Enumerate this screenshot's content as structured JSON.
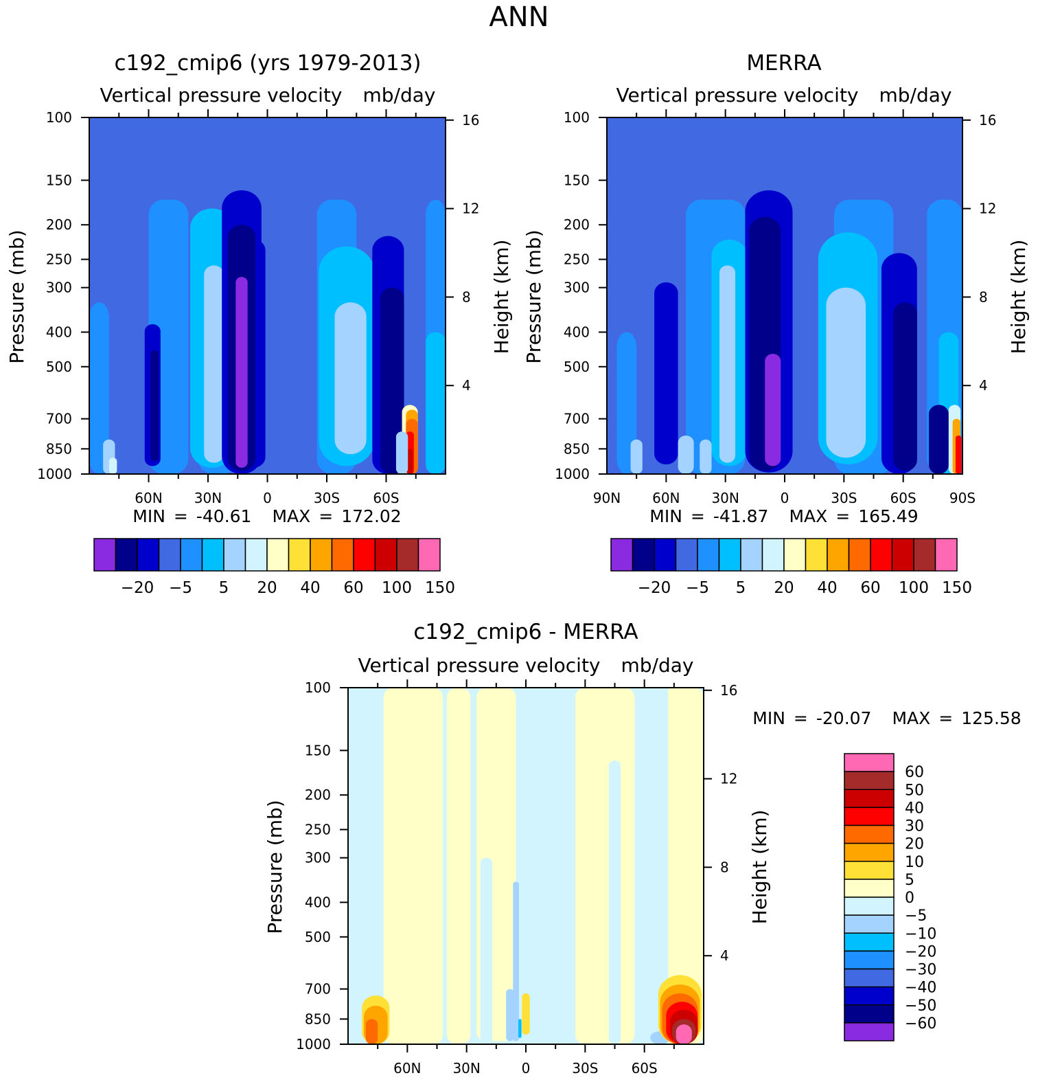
{
  "title": "ANN",
  "units_title": "Vertical pressure velocity",
  "units": "mb/day",
  "y_left_label": "Pressure (mb)",
  "y_right_label": "Height (km)",
  "min_label": "MIN",
  "max_label": "MAX",
  "equals": "=",
  "colors": {
    "abs": [
      "#8a2be2",
      "#00008b",
      "#0000cd",
      "#4169e1",
      "#1e90ff",
      "#00bfff",
      "#a4d3ff",
      "#d2f4ff",
      "#ffffc8",
      "#ffe036",
      "#ffa500",
      "#ff6a00",
      "#ff0000",
      "#cd0000",
      "#a52a2a",
      "#ff69b4"
    ],
    "diff": [
      "#8a2be2",
      "#00008b",
      "#0000cd",
      "#4169e1",
      "#1e90ff",
      "#00bfff",
      "#a4d3ff",
      "#d2f4ff",
      "#ffffc8",
      "#ffe036",
      "#ffa500",
      "#ff6a00",
      "#ff0000",
      "#cd0000",
      "#a52a2a",
      "#ff69b4"
    ]
  },
  "chart_data": [
    {
      "type": "heatmap",
      "panel": "model",
      "title": "c192_cmip6 (yrs 1979-2013)",
      "subtitle": "Vertical pressure velocity",
      "units": "mb/day",
      "x_ticks": [
        "60N",
        "30N",
        "0",
        "30S",
        "60S"
      ],
      "y_ticks": [
        100,
        150,
        200,
        250,
        300,
        400,
        500,
        700,
        850,
        1000
      ],
      "y_right_ticks": [
        16,
        12,
        8,
        4
      ],
      "xlabel": "",
      "ylabel": "Pressure (mb)",
      "y2label": "Height (km)",
      "min": "-40.61",
      "max": "172.02",
      "levels_labels": [
        "-20",
        "-5",
        "5",
        "20",
        "40",
        "60",
        "100",
        "150"
      ],
      "features": [
        {
          "lat": 15,
          "top": 280,
          "bottom": 950,
          "halfwidth": 4,
          "level": 0
        },
        {
          "lat": 10,
          "top": 200,
          "bottom": 980,
          "halfwidth": 9,
          "level": 1
        },
        {
          "lat": -62,
          "top": 300,
          "bottom": 1000,
          "halfwidth": 8,
          "level": 1
        },
        {
          "lat": 25,
          "top": 200,
          "bottom": 850,
          "halfwidth": 10,
          "level": 5
        },
        {
          "lat": -45,
          "top": 250,
          "bottom": 850,
          "halfwidth": 12,
          "level": 5
        },
        {
          "lat": 57,
          "top": 400,
          "bottom": 900,
          "halfwidth": 3,
          "level": 2
        }
      ]
    },
    {
      "type": "heatmap",
      "panel": "obs",
      "title": "MERRA",
      "subtitle": "Vertical pressure velocity",
      "units": "mb/day",
      "x_ticks": [
        "90N",
        "60N",
        "30N",
        "0",
        "30S",
        "60S",
        "90S"
      ],
      "y_ticks": [
        100,
        150,
        200,
        250,
        300,
        400,
        500,
        700,
        850,
        1000
      ],
      "y_right_ticks": [
        16,
        12,
        8,
        4
      ],
      "xlabel": "",
      "ylabel": "Pressure (mb)",
      "y2label": "Height (km)",
      "min": "-41.87",
      "max": "165.49",
      "levels_labels": [
        "-20",
        "-5",
        "5",
        "20",
        "40",
        "60",
        "100",
        "150"
      ]
    },
    {
      "type": "heatmap",
      "panel": "diff",
      "title": "c192_cmip6 - MERRA",
      "subtitle": "Vertical pressure velocity",
      "units": "mb/day",
      "x_ticks": [
        "60N",
        "30N",
        "0",
        "30S",
        "60S"
      ],
      "y_ticks": [
        100,
        150,
        200,
        250,
        300,
        400,
        500,
        700,
        850,
        1000
      ],
      "y_right_ticks": [
        16,
        12,
        8,
        4
      ],
      "xlabel": "",
      "ylabel": "Pressure (mb)",
      "y2label": "Height (km)",
      "min": "-20.07",
      "max": "125.58",
      "levels_labels": [
        "60",
        "50",
        "40",
        "30",
        "20",
        "10",
        "5",
        "0",
        "-5",
        "-10",
        "-20",
        "-30",
        "-40",
        "-50",
        "-60"
      ]
    }
  ]
}
